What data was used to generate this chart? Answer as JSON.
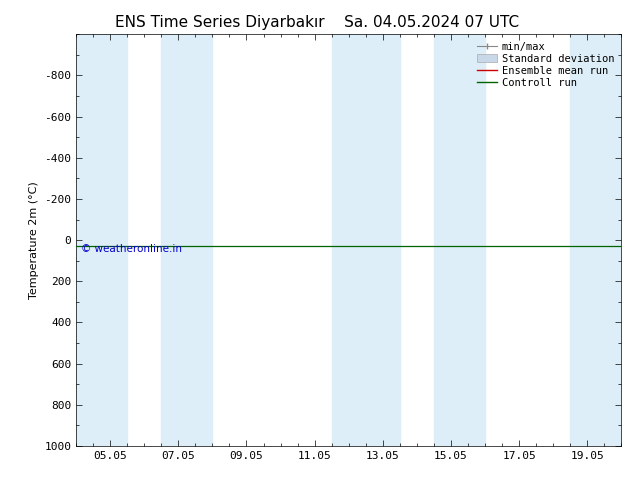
{
  "title_left": "ENS Time Series Diyarbakır",
  "title_right": "Sa. 04.05.2024 07 UTC",
  "ylabel": "Temperature 2m (°C)",
  "ylim_top": -1000,
  "ylim_bottom": 1000,
  "yticks": [
    -800,
    -600,
    -400,
    -200,
    0,
    200,
    400,
    600,
    800,
    1000
  ],
  "x_tick_labels": [
    "05.05",
    "07.05",
    "09.05",
    "11.05",
    "13.05",
    "15.05",
    "17.05",
    "19.05"
  ],
  "x_tick_positions": [
    1,
    3,
    5,
    7,
    9,
    11,
    13,
    15
  ],
  "xlim": [
    0,
    16
  ],
  "background_color": "#ffffff",
  "shaded_band_color": "#ddeef8",
  "shaded_bands": [
    [
      0,
      1.5
    ],
    [
      2.5,
      4.0
    ],
    [
      7.5,
      9.5
    ],
    [
      10.5,
      12.0
    ],
    [
      14.5,
      16.0
    ]
  ],
  "control_run_y": 30,
  "control_run_color": "#006400",
  "ensemble_mean_color": "#cc0000",
  "std_dev_fill_color": "#c8d8e8",
  "minmax_color": "#888888",
  "copyright_text": "© weatheronline.in",
  "copyright_color": "#0000cc",
  "title_fontsize": 11,
  "axis_label_fontsize": 8,
  "tick_fontsize": 8,
  "legend_fontsize": 7.5
}
